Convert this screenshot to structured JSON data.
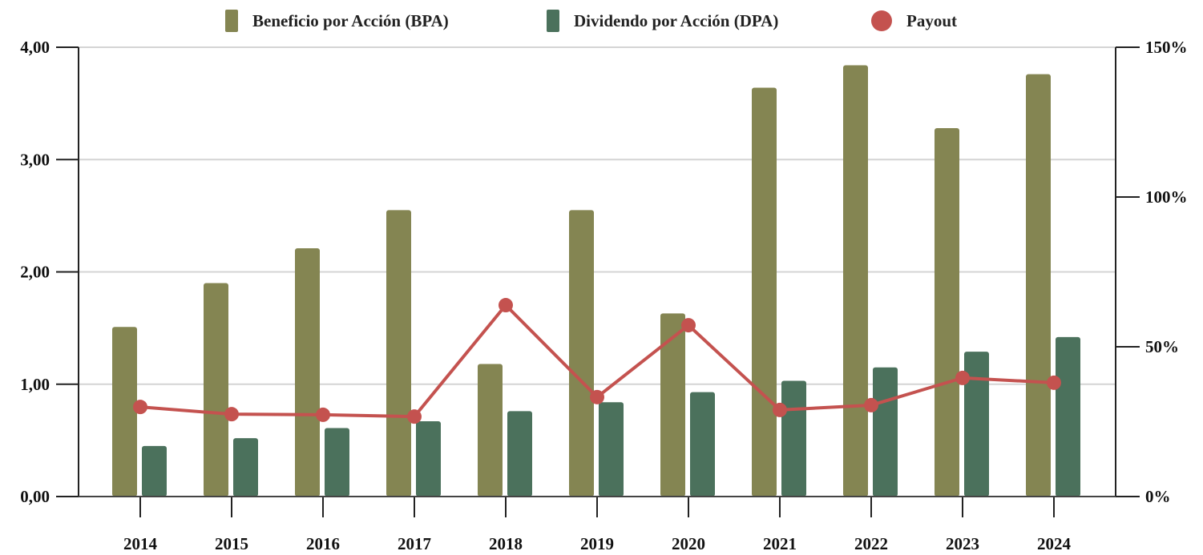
{
  "chart_data": {
    "type": "bar",
    "categories": [
      "2014",
      "2015",
      "2016",
      "2017",
      "2018",
      "2019",
      "2020",
      "2021",
      "2022",
      "2023",
      "2024"
    ],
    "series": [
      {
        "name": "Beneficio por Acción (BPA)",
        "kind": "bar",
        "axis": "left",
        "color": "#848552",
        "values": [
          1.51,
          1.9,
          2.21,
          2.55,
          1.18,
          2.55,
          1.63,
          3.64,
          3.84,
          3.28,
          3.76
        ]
      },
      {
        "name": "Dividendo por Acción (DPA)",
        "kind": "bar",
        "axis": "left",
        "color": "#4b715c",
        "values": [
          0.45,
          0.52,
          0.61,
          0.67,
          0.76,
          0.84,
          0.93,
          1.03,
          1.15,
          1.29,
          1.42
        ]
      },
      {
        "name": "Payout",
        "kind": "line",
        "axis": "right",
        "color": "#c4524f",
        "values": [
          29.9,
          27.5,
          27.3,
          26.7,
          63.9,
          33.2,
          57.2,
          28.9,
          30.5,
          39.6,
          38.0
        ]
      }
    ],
    "title": "",
    "xlabel": "",
    "ylabel": "",
    "ylim": [
      0,
      4
    ],
    "y_ticks": [
      "0,00",
      "1,00",
      "2,00",
      "3,00",
      "4,00"
    ],
    "y2lim": [
      0,
      150
    ],
    "y2_ticks": [
      "0%",
      "50%",
      "100%",
      "150%"
    ],
    "grid": true,
    "legend_position": "top-center"
  }
}
